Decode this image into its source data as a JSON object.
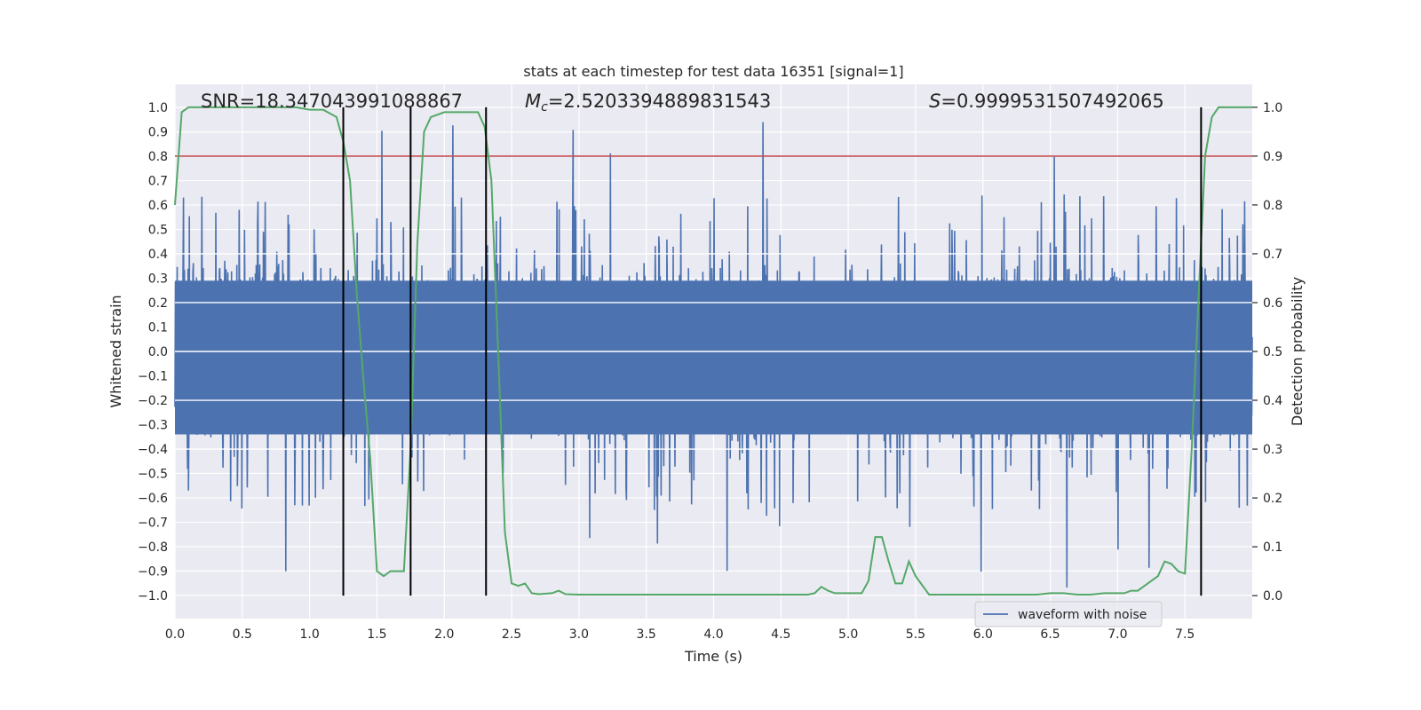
{
  "chart_data": {
    "type": "line",
    "title": "stats at each timestep for test data 16351 [signal=1]",
    "xlabel": "Time (s)",
    "ylabel": "Whitened strain",
    "y2label": "Detection probability",
    "xlim": [
      0.0,
      8.0
    ],
    "ylim": [
      -1.095,
      1.095
    ],
    "y2lim": [
      -0.047,
      1.047
    ],
    "xticks": [
      "0.0",
      "0.5",
      "1.0",
      "1.5",
      "2.0",
      "2.5",
      "3.0",
      "3.5",
      "4.0",
      "4.5",
      "5.0",
      "5.5",
      "6.0",
      "6.5",
      "7.0",
      "7.5"
    ],
    "yticks": [
      "1.0",
      "0.9",
      "0.8",
      "0.7",
      "0.6",
      "0.5",
      "0.4",
      "0.3",
      "0.2",
      "0.1",
      "0.0",
      "-0.1",
      "-0.2",
      "-0.3",
      "-0.4",
      "-0.5",
      "-0.6",
      "-0.7",
      "-0.8",
      "-0.9",
      "-1.0"
    ],
    "y2ticks": [
      "1.0",
      "0.9",
      "0.8",
      "0.7",
      "0.6",
      "0.5",
      "0.4",
      "0.3",
      "0.2",
      "0.1",
      "0.0"
    ],
    "grid": true,
    "legend_placement": "lower-right",
    "annotations": {
      "snr": "SNR=18.347043991088867",
      "mc_symbol": "M",
      "mc_sub": "c",
      "mc_value": "=2.5203394889831543",
      "s_symbol": "S",
      "s_value": "=0.9999531507492065"
    },
    "series": [
      {
        "name": "waveform with noise",
        "axis": "left",
        "color": "#4c72b0",
        "noise_amplitude": 0.4,
        "peak_range": [
          -1.0,
          0.98
        ]
      },
      {
        "axis": "right",
        "color": "#55a868",
        "x": [
          0.0,
          0.05,
          0.1,
          0.15,
          0.2,
          0.3,
          0.5,
          0.7,
          0.9,
          1.0,
          1.1,
          1.2,
          1.25,
          1.3,
          1.35,
          1.4,
          1.45,
          1.5,
          1.55,
          1.6,
          1.65,
          1.7,
          1.75,
          1.8,
          1.85,
          1.9,
          2.0,
          2.1,
          2.2,
          2.25,
          2.3,
          2.35,
          2.4,
          2.45,
          2.5,
          2.55,
          2.6,
          2.65,
          2.7,
          2.8,
          2.85,
          2.9,
          3.0,
          3.2,
          3.5,
          4.0,
          4.2,
          4.5,
          4.7,
          4.75,
          4.8,
          4.85,
          4.9,
          5.0,
          5.05,
          5.1,
          5.15,
          5.2,
          5.25,
          5.3,
          5.35,
          5.4,
          5.45,
          5.5,
          5.6,
          5.7,
          6.0,
          6.2,
          6.4,
          6.5,
          6.6,
          6.7,
          6.8,
          6.9,
          7.0,
          7.05,
          7.1,
          7.15,
          7.2,
          7.3,
          7.35,
          7.4,
          7.45,
          7.5,
          7.55,
          7.6,
          7.65,
          7.7,
          7.75,
          7.8,
          7.85,
          7.9,
          7.95,
          8.0
        ],
        "values": [
          0.8,
          0.99,
          1.0,
          1.0,
          1.0,
          1.0,
          1.0,
          1.0,
          1.0,
          0.995,
          0.995,
          0.98,
          0.93,
          0.85,
          0.62,
          0.44,
          0.28,
          0.05,
          0.04,
          0.05,
          0.05,
          0.05,
          0.3,
          0.72,
          0.95,
          0.98,
          0.99,
          0.99,
          0.99,
          0.99,
          0.96,
          0.85,
          0.5,
          0.13,
          0.025,
          0.02,
          0.025,
          0.005,
          0.003,
          0.005,
          0.01,
          0.003,
          0.002,
          0.002,
          0.002,
          0.002,
          0.002,
          0.002,
          0.002,
          0.005,
          0.018,
          0.01,
          0.005,
          0.005,
          0.005,
          0.005,
          0.03,
          0.12,
          0.12,
          0.07,
          0.025,
          0.025,
          0.07,
          0.04,
          0.002,
          0.002,
          0.002,
          0.002,
          0.002,
          0.005,
          0.005,
          0.002,
          0.002,
          0.005,
          0.005,
          0.005,
          0.01,
          0.01,
          0.02,
          0.04,
          0.07,
          0.065,
          0.05,
          0.045,
          0.3,
          0.6,
          0.9,
          0.98,
          1.0,
          1.0,
          1.0,
          1.0,
          1.0,
          1.0
        ]
      }
    ],
    "threshold": {
      "axis": "right",
      "value": 0.9,
      "color": "#c44e52"
    },
    "vlines": [
      1.25,
      1.75,
      2.31,
      7.62
    ]
  }
}
